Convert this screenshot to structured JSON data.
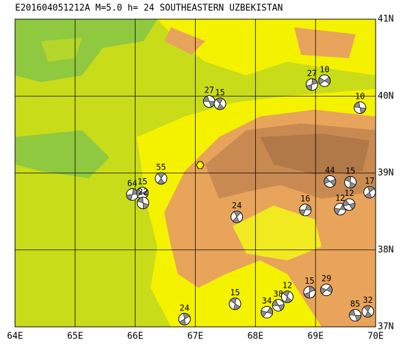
{
  "map": {
    "title": "E201604051212A  M=5.0  h= 24 SOUTHEASTERN UZBEKISTAN",
    "lonlim": [
      64,
      70
    ],
    "latlim": [
      37,
      41
    ],
    "lon_ticks": [
      {
        "value": 64,
        "label": "64E"
      },
      {
        "value": 65,
        "label": "65E"
      },
      {
        "value": 66,
        "label": "66E"
      },
      {
        "value": 67,
        "label": "67E"
      },
      {
        "value": 68,
        "label": "68E"
      },
      {
        "value": 69,
        "label": "69E"
      },
      {
        "value": 70,
        "label": "70E"
      }
    ],
    "lat_ticks": [
      {
        "value": 37,
        "label": "37N"
      },
      {
        "value": 38,
        "label": "38N"
      },
      {
        "value": 39,
        "label": "39N"
      },
      {
        "value": 40,
        "label": "40N"
      },
      {
        "value": 41,
        "label": "41N"
      }
    ],
    "events": [
      {
        "lon": 67.23,
        "lat": 39.93,
        "depth": 27
      },
      {
        "lon": 67.41,
        "lat": 39.9,
        "depth": 15
      },
      {
        "lon": 68.94,
        "lat": 40.15,
        "depth": 27
      },
      {
        "lon": 69.15,
        "lat": 40.2,
        "depth": 10
      },
      {
        "lon": 69.74,
        "lat": 39.85,
        "depth": 10
      },
      {
        "lon": 66.43,
        "lat": 38.93,
        "depth": 55
      },
      {
        "lon": 65.95,
        "lat": 38.72,
        "depth": 64
      },
      {
        "lon": 66.12,
        "lat": 38.74,
        "depth": 15
      },
      {
        "lon": 66.13,
        "lat": 38.61,
        "depth": 22
      },
      {
        "lon": 67.69,
        "lat": 38.43,
        "depth": 24
      },
      {
        "lon": 68.83,
        "lat": 38.52,
        "depth": 16
      },
      {
        "lon": 69.24,
        "lat": 38.89,
        "depth": 44
      },
      {
        "lon": 69.58,
        "lat": 38.88,
        "depth": 15
      },
      {
        "lon": 69.9,
        "lat": 38.75,
        "depth": 17
      },
      {
        "lon": 69.41,
        "lat": 38.53,
        "depth": 12
      },
      {
        "lon": 69.56,
        "lat": 38.59,
        "depth": 12
      },
      {
        "lon": 67.66,
        "lat": 37.3,
        "depth": 15
      },
      {
        "lon": 66.82,
        "lat": 37.1,
        "depth": 24
      },
      {
        "lon": 68.19,
        "lat": 37.19,
        "depth": 34
      },
      {
        "lon": 68.38,
        "lat": 37.28,
        "depth": 38
      },
      {
        "lon": 68.53,
        "lat": 37.39,
        "depth": 12
      },
      {
        "lon": 68.9,
        "lat": 37.45,
        "depth": 15
      },
      {
        "lon": 69.18,
        "lat": 37.48,
        "depth": 29
      },
      {
        "lon": 69.66,
        "lat": 37.15,
        "depth": 85
      },
      {
        "lon": 69.87,
        "lat": 37.2,
        "depth": 32
      }
    ]
  }
}
